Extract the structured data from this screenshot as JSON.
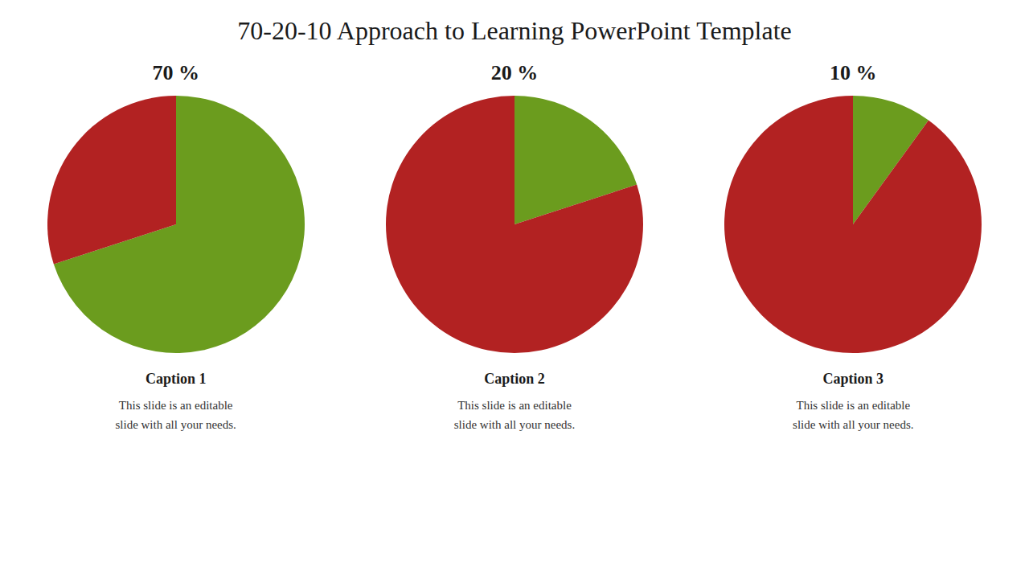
{
  "title": "70-20-10 Approach to Learning PowerPoint Template",
  "chart_data": [
    {
      "type": "pie",
      "title": "Caption 1",
      "subtitle": "This slide is an editable\nslide with all your needs.",
      "values": [
        70,
        30
      ],
      "value_labels": [
        "70 %",
        null
      ],
      "colors": [
        "#6b9c1e",
        "#b22222"
      ]
    },
    {
      "type": "pie",
      "title": "Caption 2",
      "subtitle": "This slide is an editable\nslide with all your needs.",
      "values": [
        20,
        80
      ],
      "value_labels": [
        "20 %",
        null
      ],
      "colors": [
        "#6b9c1e",
        "#b22222"
      ]
    },
    {
      "type": "pie",
      "title": "Caption 3",
      "subtitle": "This slide is an editable\nslide with all your needs.",
      "values": [
        10,
        90
      ],
      "value_labels": [
        "10 %",
        null
      ],
      "colors": [
        "#6b9c1e",
        "#b22222"
      ]
    }
  ]
}
